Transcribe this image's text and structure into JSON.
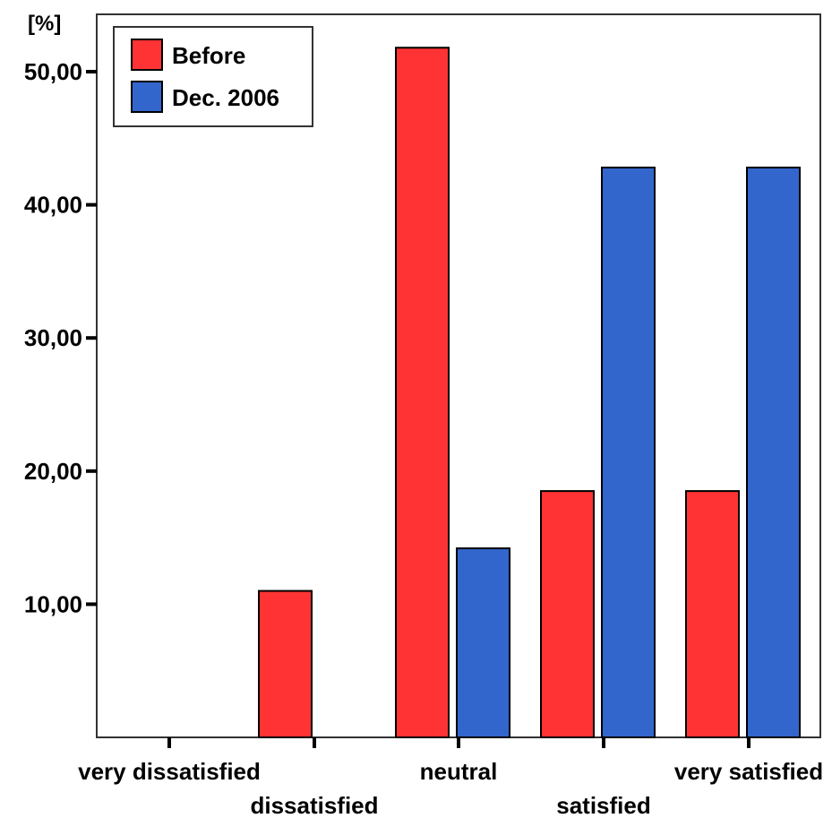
{
  "chart_data": {
    "type": "bar",
    "ylabel": "[%]",
    "ylim": [
      0,
      55
    ],
    "yticks": [
      "10,00",
      "20,00",
      "30,00",
      "40,00",
      "50,00"
    ],
    "ytick_values": [
      10,
      20,
      30,
      40,
      50
    ],
    "categories": [
      "very dissatisfied",
      "dissatisfied",
      "neutral",
      "satisfied",
      "very satisfied"
    ],
    "series": [
      {
        "name": "Before",
        "color": "#ff3333",
        "values": [
          0,
          11.0,
          51.8,
          18.5,
          18.5
        ]
      },
      {
        "name": "Dec. 2006",
        "color": "#3366cc",
        "values": [
          0,
          0,
          14.2,
          42.8,
          42.8
        ]
      }
    ],
    "legend_position": "top-left",
    "grid": false
  }
}
